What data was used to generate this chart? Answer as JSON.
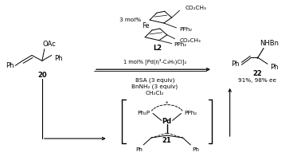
{
  "background_color": "#ffffff",
  "figsize": [
    3.78,
    2.06
  ],
  "dpi": 100,
  "text_color": "#000000",
  "line_color": "#000000",
  "compound20_label": "20",
  "compound21_label": "21",
  "compound22_label": "22",
  "ligand_label": "L2",
  "yield_ee": "91%, 98% ee",
  "cond1": "1 mol% [Pd(η³-C₃H₅)Cl]₂",
  "cond2": "BSA (3 equiv)",
  "cond3": "BnNH₂ (3 equiv)",
  "cond4": "CH₂Cl₂",
  "cat_amount": "3 mol%",
  "co2ch3": "CO₂CH₃",
  "pph2": "PPh₂",
  "nhbn": "NHBn",
  "oac": "OAc",
  "ph": "Ph",
  "pd": "Pd",
  "fe": "Fe",
  "ph2p": "Ph₂P",
  "pph2_label": "PPh₂"
}
